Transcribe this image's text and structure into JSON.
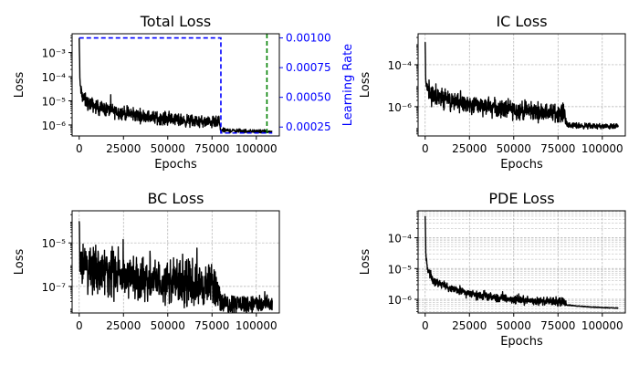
{
  "chart_data": [
    {
      "id": "total",
      "type": "line",
      "title": "Total Loss",
      "xlabel": "Epochs",
      "ylabel": "Loss",
      "y2label": "Learning Rate",
      "xlim": [
        -4000,
        113000
      ],
      "ylog": true,
      "ylim": [
        3.5e-07,
        0.006
      ],
      "xticks": [
        0,
        25000,
        50000,
        75000,
        100000
      ],
      "xtick_labels": [
        "0",
        "25000",
        "50000",
        "75000",
        "100000"
      ],
      "yticks": [
        1e-06,
        1e-05,
        0.0001,
        0.001
      ],
      "ytick_labels": [
        "10⁻⁶",
        "10⁻⁵",
        "10⁻⁴",
        "10⁻³"
      ],
      "y2lim": [
        0.000175,
        0.001035
      ],
      "y2ticks": [
        0.00025,
        0.0005,
        0.00075,
        0.001
      ],
      "y2tick_labels": [
        "0.00025",
        "0.00050",
        "0.00075",
        "0.00100"
      ],
      "grid": false,
      "color_loss": "#000000",
      "color_lr": "#0000ff",
      "color_marker": "#008000",
      "loss": {
        "anchors": [
          [
            0,
            0.004
          ],
          [
            400,
            6e-05
          ],
          [
            1500,
            1.6e-05
          ],
          [
            4000,
            9e-06
          ],
          [
            10000,
            5.5e-06
          ],
          [
            20000,
            3.6e-06
          ],
          [
            30000,
            2.7e-06
          ],
          [
            40000,
            2.1e-06
          ],
          [
            50000,
            1.8e-06
          ],
          [
            60000,
            1.5e-06
          ],
          [
            70000,
            1.35e-06
          ],
          [
            79000,
            1.25e-06
          ],
          [
            79800,
            6e-07
          ],
          [
            90000,
            5.7e-07
          ],
          [
            100000,
            5.4e-07
          ],
          [
            109000,
            5.2e-07
          ]
        ],
        "noise": [
          [
            0,
            0.2
          ],
          [
            2000,
            0.25
          ],
          [
            79000,
            0.2
          ],
          [
            79800,
            0.08
          ],
          [
            109000,
            0.05
          ]
        ]
      },
      "learning_rate": {
        "x": [
          0,
          80000,
          80000,
          109000
        ],
        "y": [
          0.001,
          0.001,
          0.0002,
          0.0002
        ]
      },
      "marker_line_x": 106000
    },
    {
      "id": "ic",
      "type": "line",
      "title": "IC Loss",
      "xlabel": "Epochs",
      "ylabel": "Loss",
      "xlim": [
        -4000,
        113000
      ],
      "ylog": true,
      "ylim": [
        4e-08,
        0.003
      ],
      "xticks": [
        0,
        25000,
        50000,
        75000,
        100000
      ],
      "xtick_labels": [
        "0",
        "25000",
        "50000",
        "75000",
        "100000"
      ],
      "yticks": [
        1e-06,
        0.0001
      ],
      "ytick_labels": [
        "10⁻⁶",
        "10⁻⁴"
      ],
      "grid": true,
      "color_loss": "#000000",
      "loss": {
        "anchors": [
          [
            0,
            0.0012
          ],
          [
            400,
            1e-05
          ],
          [
            2000,
            4e-06
          ],
          [
            10000,
            2.3e-06
          ],
          [
            20000,
            1.5e-06
          ],
          [
            30000,
            1.1e-06
          ],
          [
            40000,
            8.5e-07
          ],
          [
            50000,
            7e-07
          ],
          [
            60000,
            6e-07
          ],
          [
            70000,
            5.3e-07
          ],
          [
            79000,
            5e-07
          ],
          [
            79800,
            1.3e-07
          ],
          [
            90000,
            1.2e-07
          ],
          [
            100000,
            1.15e-07
          ],
          [
            109000,
            1.1e-07
          ]
        ],
        "noise": [
          [
            0,
            0.3
          ],
          [
            2000,
            0.4
          ],
          [
            79000,
            0.35
          ],
          [
            79800,
            0.12
          ],
          [
            109000,
            0.1
          ]
        ]
      }
    },
    {
      "id": "bc",
      "type": "line",
      "title": "BC Loss",
      "xlabel": "",
      "ylabel": "Loss",
      "xlim": [
        -4000,
        113000
      ],
      "ylog": true,
      "ylim": [
        6e-09,
        0.0003
      ],
      "xticks": [
        0,
        25000,
        50000,
        75000,
        100000
      ],
      "xtick_labels": [
        "0",
        "25000",
        "50000",
        "75000",
        "100000"
      ],
      "yticks": [
        1e-07,
        1e-05
      ],
      "ytick_labels": [
        "10⁻⁷",
        "10⁻⁵"
      ],
      "grid": true,
      "color_loss": "#000000",
      "loss": {
        "anchors": [
          [
            0,
            0.0001
          ],
          [
            500,
            1.2e-06
          ],
          [
            5000,
            7e-07
          ],
          [
            20000,
            4e-07
          ],
          [
            40000,
            2e-07
          ],
          [
            60000,
            1.3e-07
          ],
          [
            79000,
            1e-07
          ],
          [
            79800,
            1.6e-08
          ],
          [
            90000,
            1.6e-08
          ],
          [
            100000,
            1.5e-08
          ],
          [
            109000,
            1.5e-08
          ]
        ],
        "noise": [
          [
            0,
            0.8
          ],
          [
            5000,
            0.85
          ],
          [
            79000,
            0.8
          ],
          [
            79800,
            0.4
          ],
          [
            109000,
            0.35
          ]
        ]
      }
    },
    {
      "id": "pde",
      "type": "line",
      "title": "PDE Loss",
      "xlabel": "Epochs",
      "ylabel": "Loss",
      "xlim": [
        -4000,
        113000
      ],
      "ylog": true,
      "ylim": [
        3.6e-07,
        0.00075
      ],
      "xticks": [
        0,
        25000,
        50000,
        75000,
        100000
      ],
      "xtick_labels": [
        "0",
        "25000",
        "50000",
        "75000",
        "100000"
      ],
      "yticks": [
        1e-06,
        1e-05,
        0.0001
      ],
      "ytick_labels": [
        "10⁻⁶",
        "10⁻⁵",
        "10⁻⁴"
      ],
      "grid": true,
      "minor_grid": true,
      "color_loss": "#000000",
      "loss": {
        "anchors": [
          [
            0,
            0.0005
          ],
          [
            400,
            2.5e-05
          ],
          [
            1500,
            9e-06
          ],
          [
            5000,
            4e-06
          ],
          [
            15000,
            2.2e-06
          ],
          [
            25000,
            1.5e-06
          ],
          [
            40000,
            1.1e-06
          ],
          [
            60000,
            9e-07
          ],
          [
            79000,
            8e-07
          ],
          [
            80000,
            6.5e-07
          ],
          [
            90000,
            5.8e-07
          ],
          [
            100000,
            5.4e-07
          ],
          [
            109000,
            5.2e-07
          ]
        ],
        "noise": [
          [
            0,
            0.1
          ],
          [
            2000,
            0.12
          ],
          [
            79000,
            0.1
          ],
          [
            80000,
            0.01
          ],
          [
            109000,
            0.01
          ]
        ]
      }
    }
  ]
}
